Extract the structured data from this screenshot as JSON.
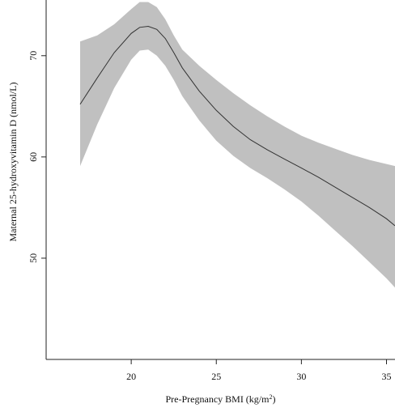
{
  "chart_data": {
    "type": "line",
    "title": "",
    "xlabel": "Pre-Pregnancy BMI (kg/m",
    "xlabel_superscript": "2",
    "xlabel_suffix": ")",
    "ylabel": "Maternal 25-hydroxyvitamin D (nmol/L)",
    "xlim": [
      15,
      35.5
    ],
    "ylim": [
      40,
      75.5
    ],
    "xticks": [
      20,
      25,
      30,
      35
    ],
    "yticks": [
      50,
      60,
      70
    ],
    "grid": false,
    "colors": {
      "band": "#c0c0c0",
      "line": "#333333",
      "axis": "#222222"
    },
    "series": [
      {
        "type": "line",
        "x": [
          17.0,
          18.0,
          19.0,
          20.0,
          20.5,
          21.0,
          21.5,
          22.0,
          22.5,
          23.0,
          24.0,
          25.0,
          26.0,
          27.0,
          28.0,
          29.0,
          30.0,
          31.0,
          32.0,
          33.0,
          34.0,
          35.0,
          35.5
        ],
        "y": [
          65.2,
          67.8,
          70.3,
          72.2,
          72.8,
          72.9,
          72.6,
          71.7,
          70.3,
          68.8,
          66.5,
          64.6,
          63.0,
          61.7,
          60.7,
          59.8,
          58.9,
          58.0,
          57.0,
          56.0,
          55.0,
          53.9,
          53.2
        ]
      },
      {
        "type": "band",
        "x": [
          17.0,
          18.0,
          19.0,
          20.0,
          20.5,
          21.0,
          21.5,
          22.0,
          22.5,
          23.0,
          24.0,
          25.0,
          26.0,
          27.0,
          28.0,
          29.0,
          30.0,
          31.0,
          32.0,
          33.0,
          34.0,
          35.0,
          35.5
        ],
        "lower": [
          59.1,
          63.2,
          66.8,
          69.6,
          70.5,
          70.6,
          70.0,
          69.0,
          67.6,
          66.0,
          63.6,
          61.6,
          60.1,
          58.9,
          57.9,
          56.8,
          55.6,
          54.2,
          52.7,
          51.2,
          49.6,
          48.0,
          47.1
        ],
        "upper": [
          71.4,
          72.0,
          73.1,
          74.6,
          75.3,
          75.3,
          74.8,
          73.6,
          72.0,
          70.6,
          69.0,
          67.6,
          66.3,
          65.1,
          64.0,
          63.0,
          62.1,
          61.4,
          60.8,
          60.2,
          59.7,
          59.3,
          59.1
        ]
      }
    ]
  }
}
